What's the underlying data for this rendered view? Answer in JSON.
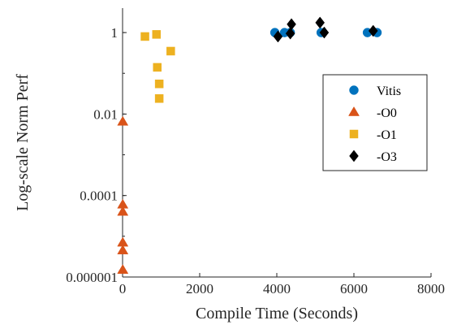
{
  "chart_data": {
    "type": "scatter",
    "xlabel": "Compile Time (Seconds)",
    "ylabel": "Log-scale Norm Perf",
    "xlim": [
      0,
      8000
    ],
    "ylim_log10": [
      -6,
      0.6
    ],
    "y_scale": "log",
    "grid": false,
    "legend_position": "top-right",
    "x_ticks": [
      {
        "value": 0,
        "label": "0"
      },
      {
        "value": 2000,
        "label": "2000"
      },
      {
        "value": 4000,
        "label": "4000"
      },
      {
        "value": 6000,
        "label": "6000"
      },
      {
        "value": 8000,
        "label": "8000"
      }
    ],
    "y_ticks": [
      {
        "value": 1e-06,
        "label": "0.000001"
      },
      {
        "value": 0.0001,
        "label": "0.0001"
      },
      {
        "value": 0.01,
        "label": "0.01"
      },
      {
        "value": 1,
        "label": "1"
      }
    ],
    "series": [
      {
        "name": "Vitis",
        "marker": "circle",
        "color": "#0072BD",
        "points": [
          {
            "x": 3950,
            "y": 1.0
          },
          {
            "x": 4200,
            "y": 1.0
          },
          {
            "x": 4350,
            "y": 1.0
          },
          {
            "x": 5150,
            "y": 1.0
          },
          {
            "x": 6350,
            "y": 1.0
          },
          {
            "x": 6600,
            "y": 1.0
          }
        ]
      },
      {
        "name": "-O0",
        "marker": "triangle",
        "color": "#D95319",
        "points": [
          {
            "x": 5,
            "y": 0.0065
          },
          {
            "x": 5,
            "y": 6e-05
          },
          {
            "x": 5,
            "y": 4e-05
          },
          {
            "x": 5,
            "y": 7e-06
          },
          {
            "x": 5,
            "y": 4.5e-06
          },
          {
            "x": 5,
            "y": 1.5e-06
          }
        ]
      },
      {
        "name": "-O1",
        "marker": "square",
        "color": "#EDB120",
        "points": [
          {
            "x": 580,
            "y": 0.8
          },
          {
            "x": 880,
            "y": 0.9
          },
          {
            "x": 900,
            "y": 0.14
          },
          {
            "x": 950,
            "y": 0.055
          },
          {
            "x": 950,
            "y": 0.024
          },
          {
            "x": 1250,
            "y": 0.35
          }
        ]
      },
      {
        "name": "-O3",
        "marker": "diamond",
        "color": "#000000",
        "points": [
          {
            "x": 4030,
            "y": 0.8
          },
          {
            "x": 4350,
            "y": 0.95
          },
          {
            "x": 4380,
            "y": 1.6
          },
          {
            "x": 5120,
            "y": 1.75
          },
          {
            "x": 5230,
            "y": 1.0
          },
          {
            "x": 6500,
            "y": 1.1
          }
        ]
      }
    ]
  }
}
